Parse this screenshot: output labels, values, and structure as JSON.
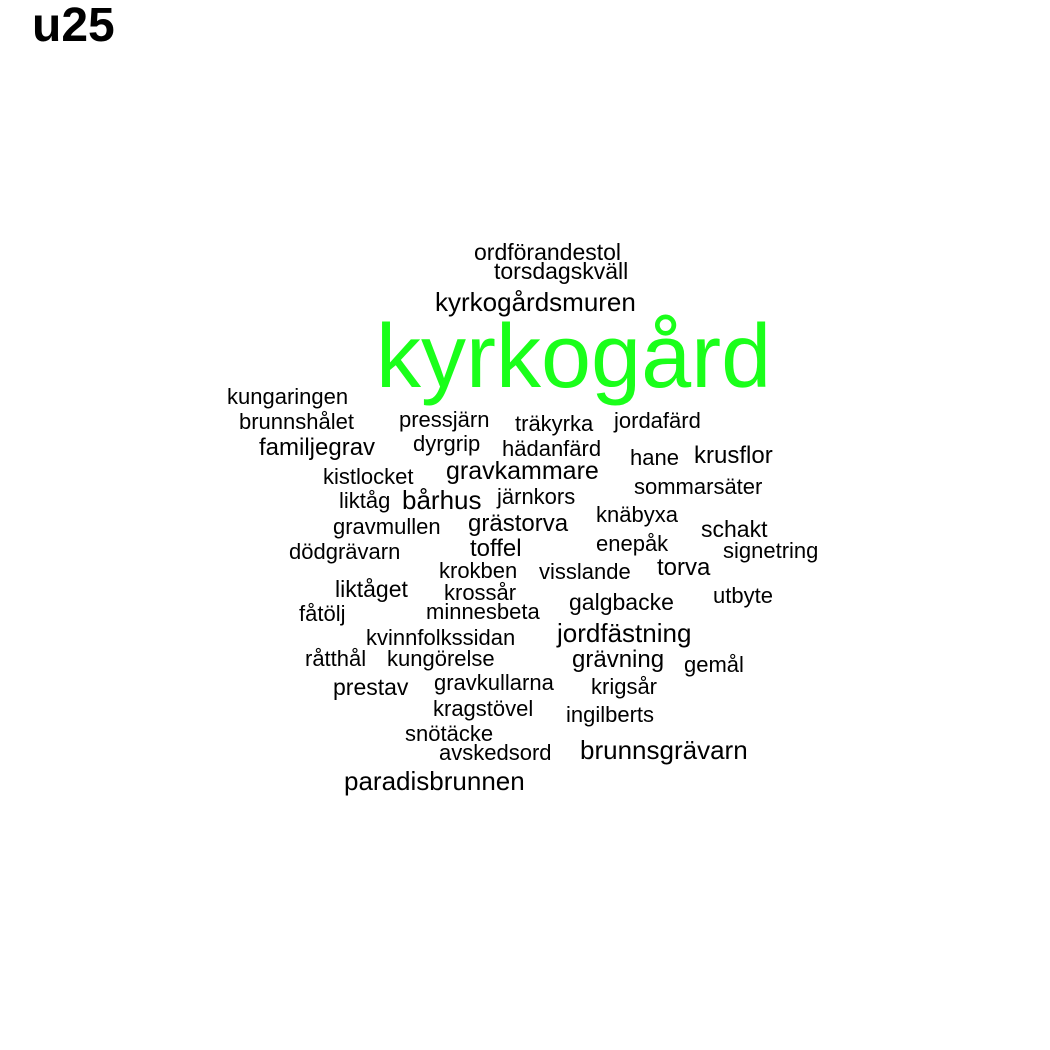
{
  "page_title": "u25",
  "chart_data": {
    "type": "wordcloud",
    "title": "u25",
    "highlight_color": "#1aff1a",
    "default_color": "#000000",
    "words": [
      {
        "text": "kyrkogård",
        "weight": 100,
        "color": "#1aff1a"
      },
      {
        "text": "ordförandestol",
        "weight": 5
      },
      {
        "text": "torsdagskväll",
        "weight": 5
      },
      {
        "text": "kyrkogårdsmuren",
        "weight": 9
      },
      {
        "text": "kungaringen",
        "weight": 5
      },
      {
        "text": "brunnshålet",
        "weight": 5
      },
      {
        "text": "pressjärn",
        "weight": 5
      },
      {
        "text": "träkyrka",
        "weight": 4
      },
      {
        "text": "jordafärd",
        "weight": 5
      },
      {
        "text": "familjegrav",
        "weight": 7
      },
      {
        "text": "dyrgrip",
        "weight": 4
      },
      {
        "text": "hädanfärd",
        "weight": 5
      },
      {
        "text": "hane",
        "weight": 4
      },
      {
        "text": "krusflor",
        "weight": 5
      },
      {
        "text": "kistlocket",
        "weight": 5
      },
      {
        "text": "gravkammare",
        "weight": 7
      },
      {
        "text": "sommarsäter",
        "weight": 5
      },
      {
        "text": "liktåg",
        "weight": 5
      },
      {
        "text": "bårhus",
        "weight": 7
      },
      {
        "text": "järnkors",
        "weight": 5
      },
      {
        "text": "knäbyxa",
        "weight": 5
      },
      {
        "text": "gravmullen",
        "weight": 5
      },
      {
        "text": "grästorva",
        "weight": 6
      },
      {
        "text": "schakt",
        "weight": 5
      },
      {
        "text": "dödgrävarn",
        "weight": 5
      },
      {
        "text": "toffel",
        "weight": 6
      },
      {
        "text": "enepåk",
        "weight": 4
      },
      {
        "text": "signetring",
        "weight": 5
      },
      {
        "text": "krokben",
        "weight": 5
      },
      {
        "text": "visslande",
        "weight": 5
      },
      {
        "text": "torva",
        "weight": 6
      },
      {
        "text": "liktåget",
        "weight": 6
      },
      {
        "text": "krossår",
        "weight": 5
      },
      {
        "text": "galgbacke",
        "weight": 6
      },
      {
        "text": "utbyte",
        "weight": 5
      },
      {
        "text": "fåtölj",
        "weight": 5
      },
      {
        "text": "minnesbeta",
        "weight": 5
      },
      {
        "text": "jordfästning",
        "weight": 8
      },
      {
        "text": "kvinnfolkssidan",
        "weight": 5
      },
      {
        "text": "råtthål",
        "weight": 6
      },
      {
        "text": "kungörelse",
        "weight": 5
      },
      {
        "text": "grävning",
        "weight": 6
      },
      {
        "text": "gemål",
        "weight": 5
      },
      {
        "text": "prestav",
        "weight": 7
      },
      {
        "text": "gravkullarna",
        "weight": 5
      },
      {
        "text": "krigsår",
        "weight": 5
      },
      {
        "text": "kragstövel",
        "weight": 5
      },
      {
        "text": "ingilberts",
        "weight": 5
      },
      {
        "text": "snötäcke",
        "weight": 5
      },
      {
        "text": "avskedsord",
        "weight": 5
      },
      {
        "text": "brunnsgrävarn",
        "weight": 7
      },
      {
        "text": "paradisbrunnen",
        "weight": 8
      }
    ]
  }
}
